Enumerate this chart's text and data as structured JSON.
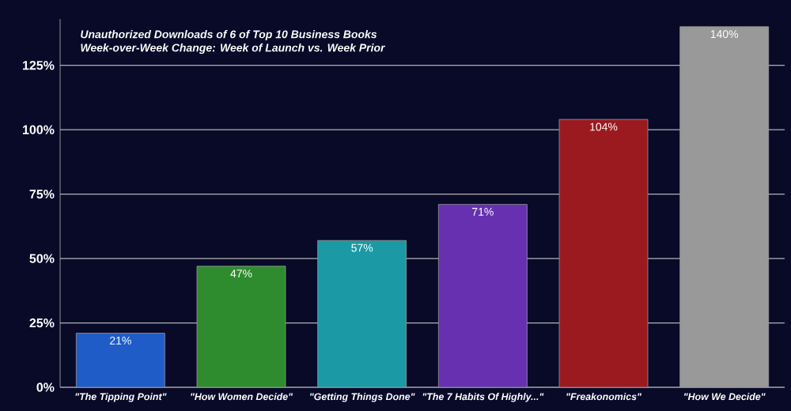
{
  "chart_data": {
    "type": "bar",
    "title": "Unauthorized Downloads of 6 of Top 10 Business Books",
    "subtitle": "Week-over-Week Change: Week of Launch vs. Week Prior",
    "categories": [
      "\"The Tipping Point\"",
      "\"How Women Decide\"",
      "\"Getting Things Done\"",
      "\"The 7 Habits Of Highly...\"",
      "\"Freakonomics\"",
      "\"How We Decide\""
    ],
    "values": [
      21,
      47,
      57,
      71,
      104,
      140
    ],
    "colors": [
      "#1f5cc8",
      "#2e8c2e",
      "#1b9aa5",
      "#6630b0",
      "#9b1a1f",
      "#999999"
    ],
    "ylim": [
      0,
      143
    ],
    "yticks": [
      {
        "value": 0,
        "label": "0%"
      },
      {
        "value": 25,
        "label": "25%"
      },
      {
        "value": 50,
        "label": "50%"
      },
      {
        "value": 75,
        "label": "75%"
      },
      {
        "value": 100,
        "label": "100%"
      },
      {
        "value": 125,
        "label": "125%"
      }
    ],
    "value_labels": [
      "21%",
      "47%",
      "57%",
      "71%",
      "104%",
      "140%"
    ],
    "grid": "y"
  }
}
